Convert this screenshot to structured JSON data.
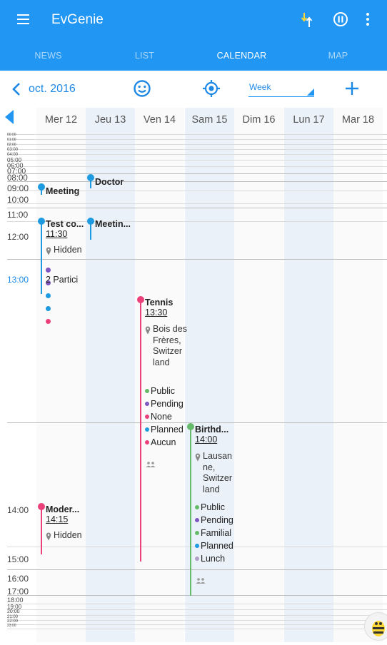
{
  "app": {
    "title": "EvGenie"
  },
  "tabs": [
    {
      "label": "NEWS"
    },
    {
      "label": "LIST"
    },
    {
      "label": "CALENDAR"
    },
    {
      "label": "MAP"
    }
  ],
  "toolbar": {
    "month": "oct. 2016",
    "view": "Week"
  },
  "colors": {
    "primary": "#2196f3",
    "blue_event": "#1e9be0",
    "pink_event": "#ec407a",
    "green_event": "#66bb6a",
    "purple": "#7e57c2",
    "sort_yellow": "#fdd835"
  },
  "icons": [
    "menu-icon",
    "sort-icon",
    "pause-icon",
    "more-vert-icon",
    "back-arrow-icon",
    "smiley-icon",
    "my-location-icon",
    "add-icon",
    "triangle-left-icon",
    "pin-icon",
    "people-icon"
  ],
  "days": [
    "Mer 12",
    "Jeu 13",
    "Ven 14",
    "Sam 15",
    "Dim 16",
    "Lun 17",
    "Mar 18"
  ],
  "hours": {
    "h0000": "00:00",
    "h0100": "01:00",
    "h0200": "02:00",
    "h0300": "03:00",
    "h0400": "04:00",
    "h0500": "05:00",
    "h0600": "06:00",
    "h0700": "07:00",
    "h0800": "08:00",
    "h0900": "09:00",
    "h1000": "10:00",
    "h1100": "11:00",
    "h1200": "12:00",
    "h1300": "13:00",
    "h1400": "14:00",
    "h1500": "15:00",
    "h1600": "16:00",
    "h1700": "17:00",
    "h1800": "18:00",
    "h1900": "19:00",
    "h2000": "20:00",
    "h2100": "21:00",
    "h2200": "22:00",
    "h2300": "23:00"
  },
  "events": {
    "meeting": {
      "title": "Meeting"
    },
    "doctor": {
      "title": "Doctor"
    },
    "test": {
      "title": "Test co...",
      "time": "11:30",
      "location": "Hidden",
      "participants": "2 Partici"
    },
    "meetin_thu": {
      "title": "Meetin..."
    },
    "tennis": {
      "title": "Tennis",
      "time": "13:30",
      "location": "Bois des Frères, Switzer land",
      "items": [
        "Public",
        "Pending",
        "None",
        "Planned",
        "Aucun"
      ]
    },
    "birthday": {
      "title": "Birthd...",
      "time": "14:00",
      "location": "Lausan ne, Switzer land",
      "items": [
        "Public",
        "Pending",
        "Familial",
        "Planned",
        "Lunch"
      ]
    },
    "moder": {
      "title": "Moder...",
      "time": "14:15",
      "location": "Hidden"
    }
  }
}
